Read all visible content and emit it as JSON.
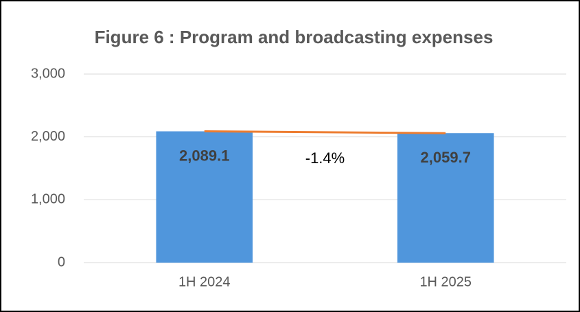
{
  "chart_data": {
    "type": "bar",
    "title": "Figure 6 : Program and broadcasting expenses",
    "categories": [
      "1H 2024",
      "1H 2025"
    ],
    "values": [
      2089.1,
      2059.7
    ],
    "value_labels": [
      "2,089.1",
      "2,059.7"
    ],
    "color": "#5096dc",
    "line_color": "#ed7d31",
    "annotation": "-1.4%",
    "ylim": [
      0,
      3000
    ],
    "yticks": [
      0,
      {
        "value": 1000,
        "label": "1,000"
      },
      {
        "value": 2000,
        "label": "2,000"
      },
      {
        "value": 3000,
        "label": "3,000"
      }
    ],
    "grid": true
  }
}
